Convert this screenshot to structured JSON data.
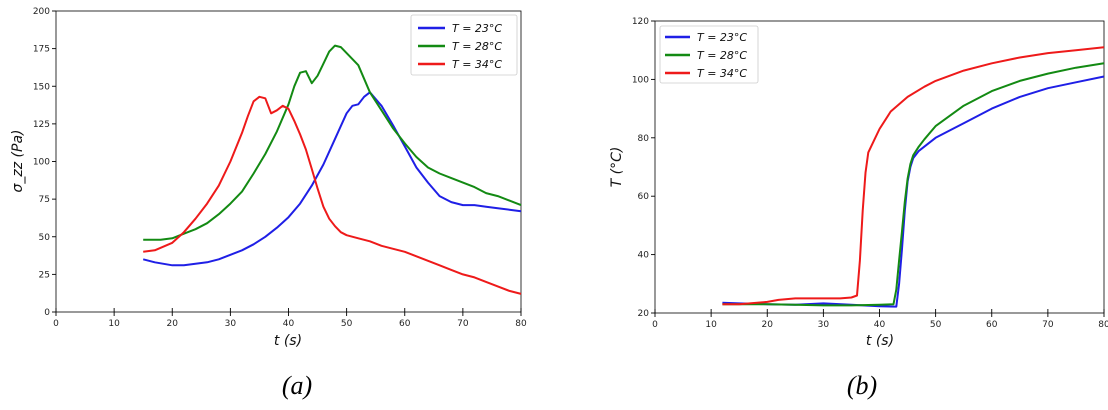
{
  "chart_data": [
    {
      "type": "line",
      "panel_label": "(a)",
      "xlabel": "t (s)",
      "ylabel": "σ_zz (Pa)",
      "xlim": [
        0,
        80
      ],
      "ylim": [
        0,
        200
      ],
      "xticks": [
        0,
        10,
        20,
        30,
        40,
        50,
        60,
        70,
        80
      ],
      "yticks": [
        0,
        25,
        50,
        75,
        100,
        125,
        150,
        175,
        200
      ],
      "grid": false,
      "legend_position": "top-right",
      "series": [
        {
          "name": "T = 23°C",
          "color": "#1f1fe6",
          "x": [
            15,
            17,
            20,
            22,
            24,
            26,
            28,
            30,
            32,
            34,
            36,
            38,
            40,
            42,
            44,
            46,
            48,
            50,
            51,
            52,
            53,
            54,
            56,
            58,
            60,
            62,
            64,
            66,
            68,
            70,
            72,
            74,
            76,
            78,
            80
          ],
          "y": [
            35,
            33,
            31,
            31,
            32,
            33,
            35,
            38,
            41,
            45,
            50,
            56,
            63,
            72,
            84,
            98,
            115,
            132,
            137,
            138,
            143,
            146,
            137,
            124,
            110,
            96,
            86,
            77,
            73,
            71,
            71,
            70,
            69,
            68,
            67
          ]
        },
        {
          "name": "T = 28°C",
          "color": "#138a13",
          "x": [
            15,
            16,
            18,
            20,
            22,
            24,
            26,
            28,
            30,
            32,
            34,
            36,
            38,
            40,
            41,
            42,
            43,
            44,
            45,
            46,
            47,
            48,
            49,
            50,
            52,
            54,
            56,
            58,
            60,
            62,
            64,
            66,
            68,
            70,
            72,
            74,
            76,
            78,
            80
          ],
          "y": [
            48,
            48,
            48,
            49,
            52,
            55,
            59,
            65,
            72,
            80,
            92,
            105,
            120,
            138,
            150,
            159,
            160,
            152,
            157,
            165,
            173,
            177,
            176,
            172,
            164,
            146,
            134,
            122,
            112,
            103,
            96,
            92,
            89,
            86,
            83,
            79,
            77,
            74,
            71
          ]
        },
        {
          "name": "T = 34°C",
          "color": "#ee1a1a",
          "x": [
            15,
            17,
            20,
            22,
            24,
            26,
            28,
            30,
            32,
            33,
            34,
            35,
            36,
            37,
            38,
            39,
            40,
            41,
            42,
            43,
            44,
            45,
            46,
            47,
            48,
            49,
            50,
            52,
            54,
            56,
            58,
            60,
            62,
            64,
            66,
            68,
            70,
            72,
            74,
            76,
            78,
            80
          ],
          "y": [
            40,
            41,
            46,
            53,
            62,
            72,
            84,
            100,
            119,
            130,
            140,
            143,
            142,
            132,
            134,
            137,
            135,
            127,
            118,
            108,
            95,
            82,
            70,
            62,
            57,
            53,
            51,
            49,
            47,
            44,
            42,
            40,
            37,
            34,
            31,
            28,
            25,
            23,
            20,
            17,
            14,
            12
          ]
        }
      ]
    },
    {
      "type": "line",
      "panel_label": "(b)",
      "xlabel": "t (s)",
      "ylabel": "T (°C)",
      "xlim": [
        0,
        80
      ],
      "ylim": [
        20,
        120
      ],
      "xticks": [
        0,
        10,
        20,
        30,
        40,
        50,
        60,
        70,
        80
      ],
      "yticks": [
        20,
        40,
        60,
        80,
        100,
        120
      ],
      "grid": false,
      "legend_position": "top-left",
      "series": [
        {
          "name": "T = 23°C",
          "color": "#1f1fe6",
          "x": [
            12,
            15,
            20,
            25,
            30,
            35,
            40,
            43,
            43.5,
            44,
            44.5,
            45,
            45.5,
            46,
            47,
            48,
            50,
            55,
            60,
            65,
            70,
            75,
            80
          ],
          "y": [
            23.5,
            23.3,
            23,
            22.8,
            23.3,
            22.8,
            22.3,
            22.2,
            30,
            42,
            55,
            65,
            70,
            73,
            75.5,
            77,
            80,
            85,
            90,
            94,
            97,
            99,
            101
          ]
        },
        {
          "name": "T = 28°C",
          "color": "#138a13",
          "x": [
            12,
            15,
            20,
            25,
            30,
            35,
            40,
            42.5,
            43,
            43.5,
            44,
            44.5,
            45,
            45.5,
            46,
            47,
            48,
            50,
            55,
            60,
            65,
            70,
            75,
            80
          ],
          "y": [
            23,
            23,
            23,
            22.8,
            22.6,
            22.6,
            22.8,
            23,
            28,
            38,
            48,
            58,
            66,
            71,
            74,
            77,
            79.5,
            84,
            91,
            96,
            99.5,
            102,
            104,
            105.5
          ]
        },
        {
          "name": "T = 34°C",
          "color": "#ee1a1a",
          "x": [
            12,
            15,
            20,
            22,
            25,
            30,
            33,
            35,
            36,
            36.5,
            37,
            37.5,
            38,
            39,
            40,
            42,
            45,
            48,
            50,
            55,
            60,
            65,
            70,
            75,
            80
          ],
          "y": [
            23,
            23,
            23.8,
            24.5,
            25,
            25,
            25,
            25.3,
            26,
            38,
            55,
            68,
            75,
            79,
            83,
            89,
            94,
            97.5,
            99.5,
            103,
            105.5,
            107.5,
            109,
            110,
            111
          ]
        }
      ]
    }
  ]
}
